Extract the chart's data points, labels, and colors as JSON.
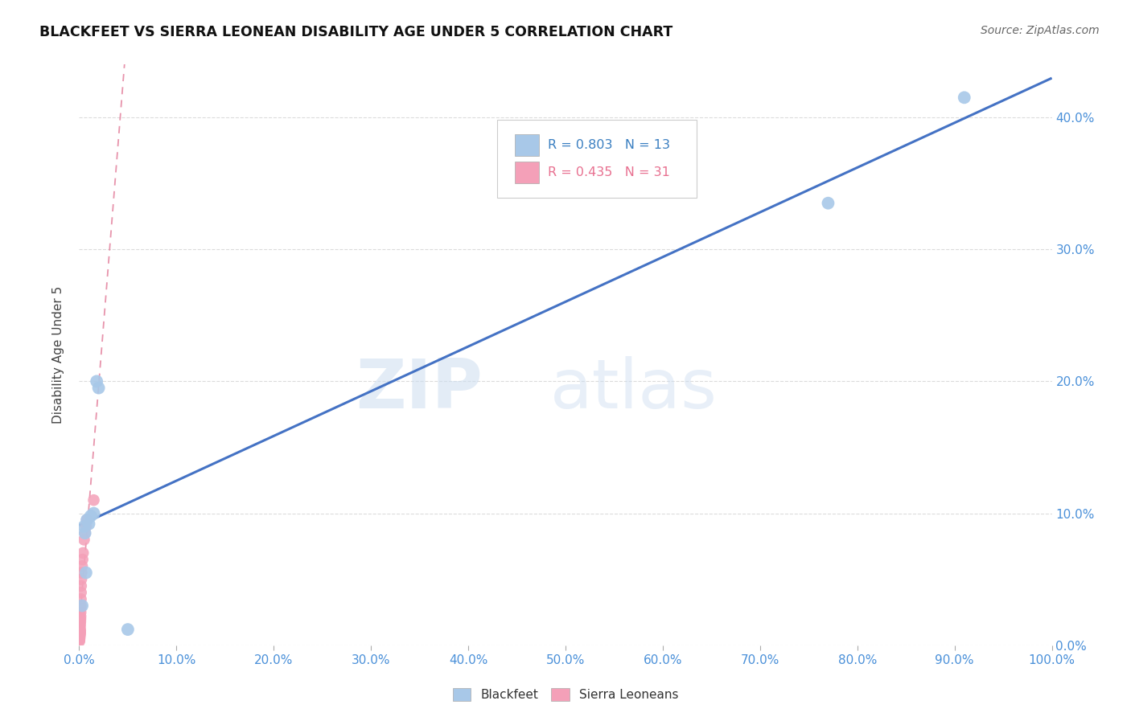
{
  "title": "BLACKFEET VS SIERRA LEONEAN DISABILITY AGE UNDER 5 CORRELATION CHART",
  "source": "Source: ZipAtlas.com",
  "ylabel": "Disability Age Under 5",
  "xlabel": "",
  "blackfeet_x": [
    0.3,
    0.5,
    0.6,
    0.7,
    0.8,
    1.0,
    1.2,
    1.5,
    1.8,
    2.0,
    5.0,
    91.0,
    77.0
  ],
  "blackfeet_y": [
    3.0,
    9.0,
    8.5,
    5.5,
    9.5,
    9.2,
    9.8,
    10.0,
    20.0,
    19.5,
    1.2,
    41.5,
    33.5
  ],
  "sierra_x": [
    0.02,
    0.03,
    0.04,
    0.05,
    0.06,
    0.07,
    0.08,
    0.08,
    0.09,
    0.1,
    0.1,
    0.11,
    0.12,
    0.13,
    0.14,
    0.15,
    0.16,
    0.17,
    0.18,
    0.19,
    0.2,
    0.22,
    0.25,
    0.3,
    0.35,
    0.4,
    0.5,
    0.6,
    0.7,
    0.8,
    1.5
  ],
  "sierra_y": [
    0.3,
    0.4,
    0.5,
    0.6,
    0.7,
    0.8,
    1.0,
    1.2,
    1.4,
    1.6,
    0.9,
    1.1,
    1.8,
    2.0,
    2.2,
    2.5,
    2.8,
    3.0,
    3.5,
    4.0,
    4.5,
    5.0,
    5.5,
    6.0,
    6.5,
    7.0,
    8.0,
    8.5,
    9.0,
    9.5,
    11.0
  ],
  "blackfeet_color": "#a8c8e8",
  "sierra_color": "#f4a0b8",
  "regression_blue_color": "#4472c4",
  "regression_pink_color": "#e07090",
  "r_blackfeet": 0.803,
  "n_blackfeet": 13,
  "r_sierra": 0.435,
  "n_sierra": 31,
  "xlim": [
    0,
    100
  ],
  "ylim": [
    0,
    44
  ],
  "xticks": [
    0,
    10,
    20,
    30,
    40,
    50,
    60,
    70,
    80,
    90,
    100
  ],
  "yticks": [
    0,
    10,
    20,
    30,
    40
  ],
  "watermark_zip": "ZIP",
  "watermark_atlas": "atlas",
  "background_color": "#ffffff",
  "grid_color": "#cccccc"
}
